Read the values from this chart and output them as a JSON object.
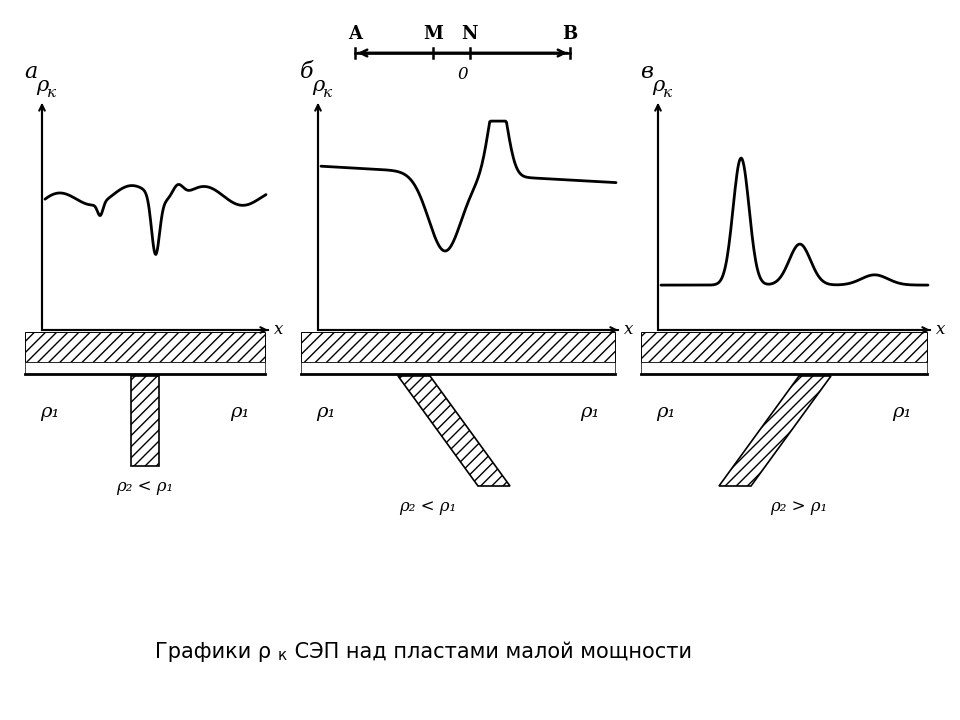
{
  "bg_color": "#ffffff",
  "line_color": "#000000",
  "panel_labels": [
    "а",
    "б",
    "в"
  ],
  "caption_main": "Графики ρ",
  "caption_sub": "к",
  "caption_rest": " СЭП над пластами малой мощности",
  "elec_labels": [
    "A",
    "M",
    "N",
    "B"
  ],
  "elec_label_0": "0",
  "rho_k": "ρк",
  "x_lbl": "x",
  "rho1": "ρ₁",
  "panels": [
    {
      "label": "а",
      "rho2": "ρ₂ < ρ₁",
      "body": "vertical"
    },
    {
      "label": "б",
      "rho2": "ρ₂ < ρ₁",
      "body": "inclined_left"
    },
    {
      "label": "в",
      "rho2": "ρ₂ > ρ₁",
      "body": "inclined_right"
    }
  ]
}
